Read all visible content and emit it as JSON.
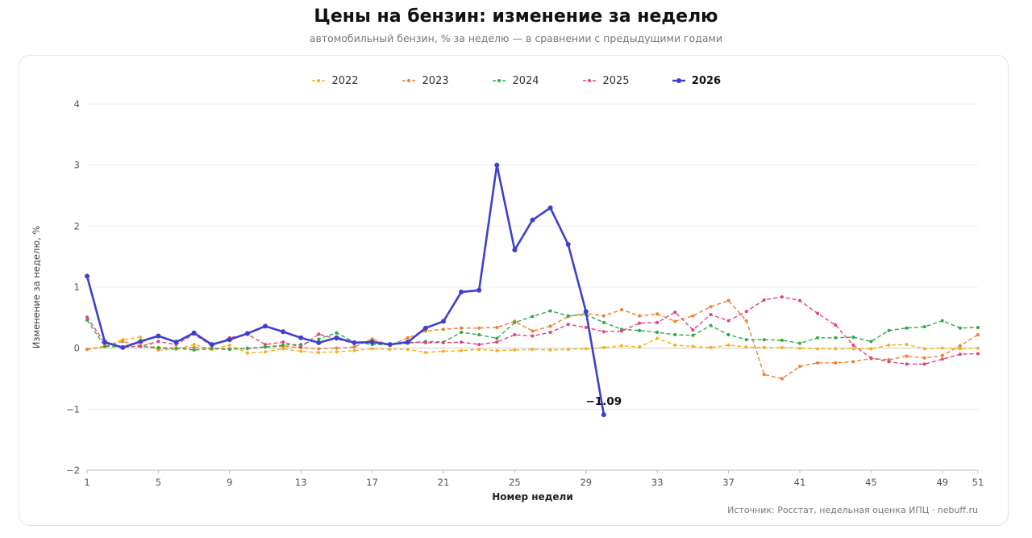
{
  "page": {
    "title": "Цены на бензин: изменение за неделю",
    "subtitle": "автомобильный бензин, % за неделю — в сравнении с предыдущими годами",
    "source": "Источник: Росстат, недельная оценка ИПЦ · nebuff.ru"
  },
  "chart_data": {
    "type": "line",
    "xlabel": "Номер недели",
    "ylabel": "Изменение за неделю, %",
    "xlim": [
      1,
      51
    ],
    "ylim": [
      -2,
      4
    ],
    "x_ticks": [
      1,
      5,
      9,
      13,
      17,
      21,
      25,
      29,
      33,
      37,
      41,
      45,
      49,
      51
    ],
    "y_ticks": [
      -2,
      -1,
      0,
      1,
      2,
      3,
      4
    ],
    "grid": true,
    "legend_position": "top-center",
    "annotation": {
      "x": 30,
      "y": -1.09,
      "text": "−1.09"
    },
    "series": [
      {
        "name": "2022",
        "color": "#f2b41d",
        "style": "dashed",
        "x": [
          1,
          2,
          3,
          4,
          5,
          6,
          7,
          8,
          9,
          10,
          11,
          12,
          13,
          14,
          15,
          16,
          17,
          18,
          19,
          20,
          21,
          22,
          23,
          24,
          25,
          26,
          27,
          28,
          29,
          30,
          31,
          32,
          33,
          34,
          35,
          36,
          37,
          38,
          39,
          40,
          41,
          42,
          43,
          44,
          45,
          46,
          47,
          48,
          49,
          50,
          51
        ],
        "values": [
          -0.02,
          0.02,
          0.14,
          0.18,
          -0.03,
          -0.02,
          0.06,
          -0.02,
          0.05,
          -0.08,
          -0.06,
          -0.01,
          -0.05,
          -0.07,
          -0.06,
          -0.04,
          -0.01,
          -0.02,
          -0.02,
          -0.07,
          -0.05,
          -0.04,
          -0.02,
          -0.04,
          -0.03,
          -0.02,
          -0.03,
          -0.02,
          -0.01,
          0.01,
          0.04,
          0.02,
          0.16,
          0.05,
          0.03,
          0.01,
          0.05,
          0.02,
          0.01,
          0.01,
          0.0,
          -0.01,
          -0.01,
          -0.01,
          -0.01,
          0.05,
          0.06,
          -0.01,
          0.0,
          -0.01,
          0.0
        ]
      },
      {
        "name": "2023",
        "color": "#f07f2a",
        "style": "dashed",
        "x": [
          1,
          2,
          3,
          4,
          5,
          6,
          7,
          8,
          9,
          10,
          11,
          12,
          13,
          14,
          15,
          16,
          17,
          18,
          19,
          20,
          21,
          22,
          23,
          24,
          25,
          26,
          27,
          28,
          29,
          30,
          31,
          32,
          33,
          34,
          35,
          36,
          37,
          38,
          39,
          40,
          41,
          42,
          43,
          44,
          45,
          46,
          47,
          48,
          49,
          50,
          51
        ],
        "values": [
          -0.02,
          0.03,
          0.11,
          0.04,
          -0.01,
          0.0,
          0.01,
          0.0,
          -0.01,
          -0.01,
          0.02,
          0.03,
          0.01,
          -0.01,
          0.0,
          0.02,
          0.15,
          0.05,
          0.17,
          0.28,
          0.31,
          0.33,
          0.33,
          0.34,
          0.44,
          0.28,
          0.36,
          0.52,
          0.57,
          0.53,
          0.63,
          0.53,
          0.56,
          0.44,
          0.53,
          0.68,
          0.78,
          0.45,
          -0.43,
          -0.5,
          -0.3,
          -0.24,
          -0.24,
          -0.22,
          -0.17,
          -0.19,
          -0.13,
          -0.16,
          -0.12,
          0.04,
          0.22
        ]
      },
      {
        "name": "2024",
        "color": "#2eaa4a",
        "style": "dashed",
        "x": [
          1,
          2,
          3,
          4,
          5,
          6,
          7,
          8,
          9,
          10,
          11,
          12,
          13,
          14,
          15,
          16,
          17,
          18,
          19,
          20,
          21,
          22,
          23,
          24,
          25,
          26,
          27,
          28,
          29,
          30,
          31,
          32,
          33,
          34,
          35,
          36,
          37,
          38,
          39,
          40,
          41,
          42,
          43,
          44,
          45,
          46,
          47,
          48,
          49,
          50,
          51
        ],
        "values": [
          0.46,
          0.03,
          0.02,
          0.03,
          0.01,
          0.0,
          -0.03,
          -0.01,
          -0.02,
          0.0,
          0.02,
          0.05,
          0.06,
          0.15,
          0.25,
          0.1,
          0.06,
          0.06,
          0.08,
          0.11,
          0.1,
          0.26,
          0.22,
          0.16,
          0.42,
          0.52,
          0.61,
          0.53,
          0.55,
          0.42,
          0.31,
          0.29,
          0.26,
          0.22,
          0.21,
          0.37,
          0.22,
          0.14,
          0.14,
          0.13,
          0.08,
          0.17,
          0.17,
          0.18,
          0.11,
          0.29,
          0.33,
          0.35,
          0.45,
          0.33,
          0.34
        ]
      },
      {
        "name": "2025",
        "color": "#e0457b",
        "style": "dashed",
        "x": [
          1,
          2,
          3,
          4,
          5,
          6,
          7,
          8,
          9,
          10,
          11,
          12,
          13,
          14,
          15,
          16,
          17,
          18,
          19,
          20,
          21,
          22,
          23,
          24,
          25,
          26,
          27,
          28,
          29,
          30,
          31,
          32,
          33,
          34,
          35,
          36,
          37,
          38,
          39,
          40,
          41,
          42,
          43,
          44,
          45,
          46,
          47,
          48,
          49,
          50,
          51
        ],
        "values": [
          0.51,
          0.08,
          0.02,
          0.03,
          0.11,
          0.06,
          0.23,
          0.04,
          0.17,
          0.23,
          0.06,
          0.1,
          0.02,
          0.23,
          0.15,
          0.08,
          0.12,
          0.06,
          0.1,
          0.09,
          0.09,
          0.1,
          0.06,
          0.1,
          0.22,
          0.2,
          0.26,
          0.39,
          0.34,
          0.27,
          0.28,
          0.41,
          0.42,
          0.59,
          0.3,
          0.55,
          0.45,
          0.6,
          0.79,
          0.84,
          0.78,
          0.57,
          0.38,
          0.05,
          -0.16,
          -0.22,
          -0.26,
          -0.26,
          -0.18,
          -0.1,
          -0.09
        ]
      },
      {
        "name": "2026",
        "color": "#3d3fd0",
        "style": "solid",
        "x": [
          1,
          2,
          3,
          4,
          5,
          6,
          7,
          8,
          9,
          10,
          11,
          12,
          13,
          14,
          15,
          16,
          17,
          18,
          19,
          20,
          21,
          22,
          23,
          24,
          25,
          26,
          27,
          28,
          29,
          30
        ],
        "values": [
          1.18,
          0.1,
          0.01,
          0.11,
          0.2,
          0.1,
          0.25,
          0.06,
          0.14,
          0.24,
          0.36,
          0.27,
          0.17,
          0.09,
          0.17,
          0.09,
          0.1,
          0.06,
          0.1,
          0.33,
          0.44,
          0.92,
          0.95,
          3.0,
          1.61,
          2.1,
          2.3,
          1.7,
          0.6,
          -1.09
        ]
      }
    ]
  }
}
